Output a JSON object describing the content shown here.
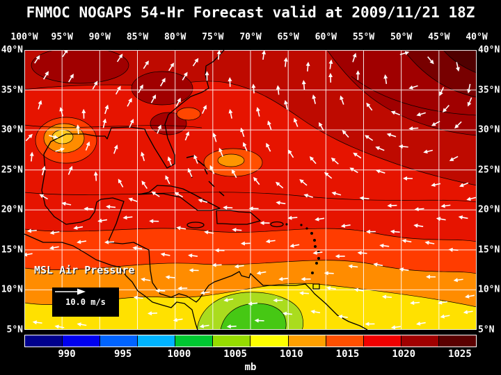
{
  "title": "FNMOC NOGAPS 54-Hr Forecast valid at 2009/11/21 18Z",
  "map": {
    "label": "MSL Air Pressure",
    "wind_legend_label": "10.0 m/s",
    "lon_labels": [
      "100°W",
      "95°W",
      "90°W",
      "85°W",
      "80°W",
      "75°W",
      "70°W",
      "65°W",
      "60°W",
      "55°W",
      "50°W",
      "45°W",
      "40°W"
    ],
    "lat_labels_left": [
      "40°N",
      "35°N",
      "30°N",
      "25°N",
      "20°N",
      "15°N",
      "10°N",
      "5°N"
    ],
    "lat_labels_right": [
      "40°N",
      "35°N",
      "30°N",
      "25°N",
      "20°N",
      "15°N",
      "10°N",
      "5°N"
    ]
  },
  "colorbar": {
    "unit": "mb",
    "tick_labels": [
      "990",
      "995",
      "1000",
      "1005",
      "1010",
      "1015",
      "1020",
      "1025"
    ],
    "colors": [
      "#00008C",
      "#0000F0",
      "#0064FF",
      "#00B4FF",
      "#00C832",
      "#96DC00",
      "#FFFF00",
      "#FFA000",
      "#FF5000",
      "#F00000",
      "#A00000",
      "#5A0000"
    ]
  },
  "chart_data": {
    "type": "heatmap",
    "title": "FNMOC NOGAPS 54-Hr Forecast valid at 2009/11/21 18Z",
    "field": "MSL Air Pressure",
    "unit": "mb",
    "model": "FNMOC NOGAPS",
    "forecast_hour": "54-Hr",
    "valid_time": "2009/11/21 18Z",
    "x_ticks": [
      "100°W",
      "95°W",
      "90°W",
      "85°W",
      "80°W",
      "75°W",
      "70°W",
      "65°W",
      "60°W",
      "55°W",
      "50°W",
      "45°W",
      "40°W"
    ],
    "y_ticks": [
      "40°N",
      "35°N",
      "30°N",
      "25°N",
      "20°N",
      "15°N",
      "10°N",
      "5°N"
    ],
    "colorbar_ticks": [
      990,
      995,
      1000,
      1005,
      1010,
      1015,
      1020,
      1025
    ],
    "colorbar_range": [
      985,
      1030
    ],
    "wind_reference": "10.0 m/s",
    "overlay": "surface wind vectors (white arrows)",
    "grid": true,
    "features": [
      {
        "type": "high",
        "region": "northeast Atlantic (top right)",
        "pressure_mb": "1022-1026, clockwise flow"
      },
      {
        "type": "low",
        "region": "western Gulf of Mexico near 94W 28N",
        "pressure_mb": "~1010-1012"
      },
      {
        "type": "low",
        "region": "southwest Caribbean near Colombia/Venezuela",
        "pressure_mb": "~1006-1008 (yellow-green minimum)"
      },
      {
        "type": "flow",
        "region": "south of 20N",
        "pressure_mb": "1010-1012 with easterly trade winds"
      }
    ]
  }
}
